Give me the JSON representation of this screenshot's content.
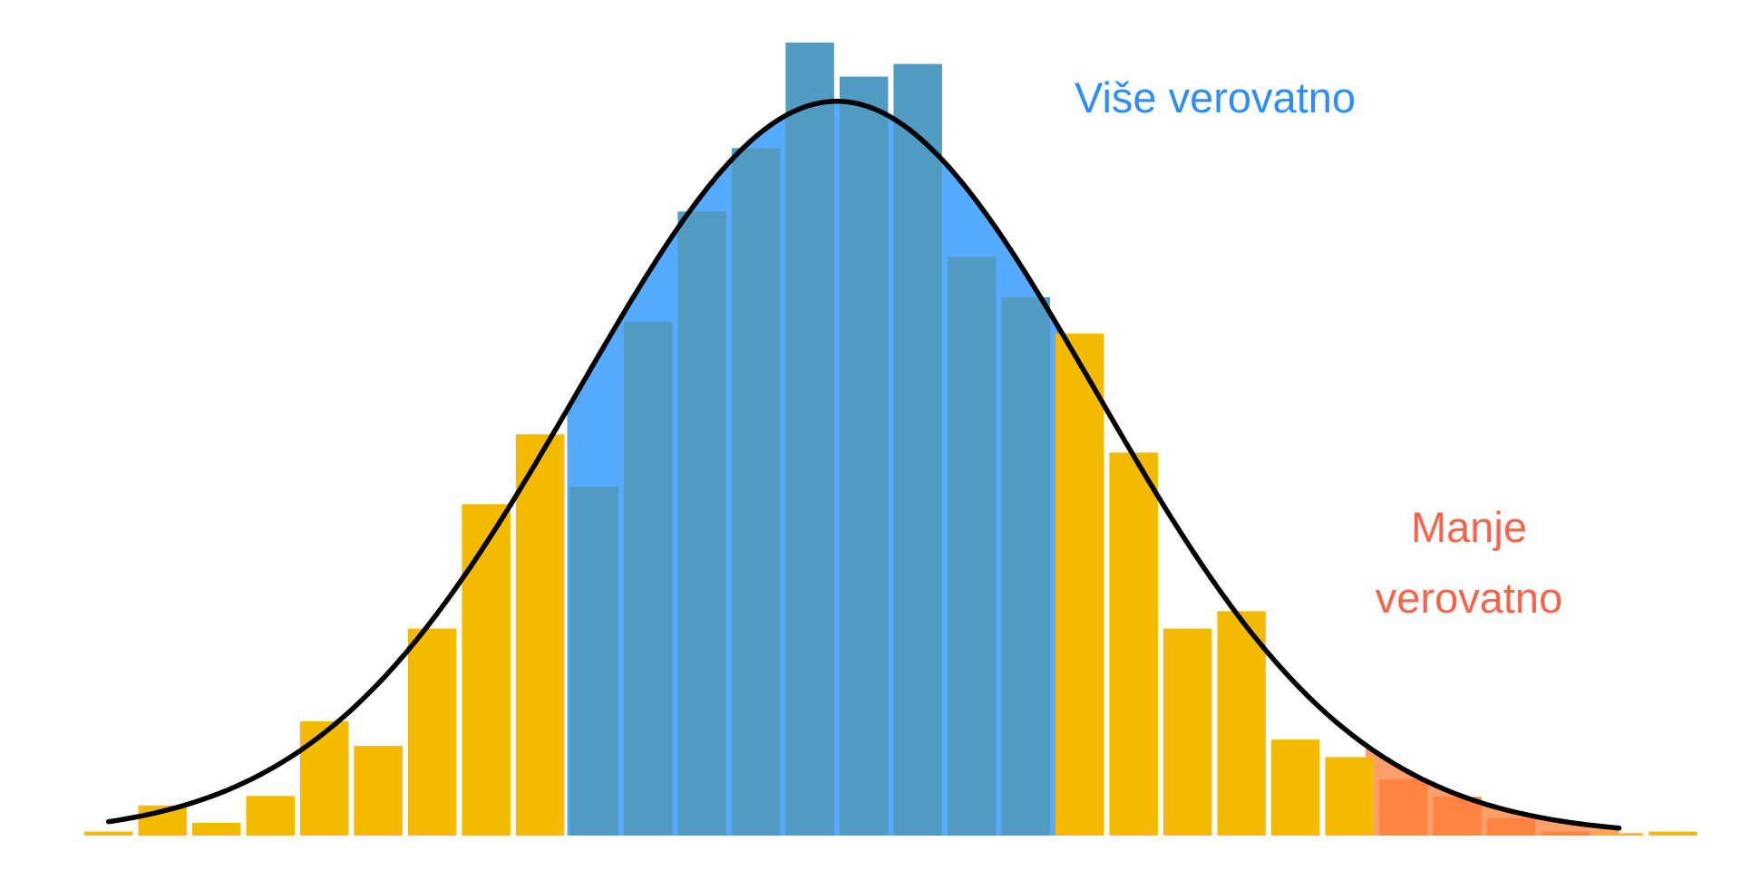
{
  "chart_data": {
    "type": "bar",
    "title": "",
    "xlabel": "",
    "ylabel": "",
    "grid": false,
    "legend": "none",
    "xlim": [
      0,
      29.7
    ],
    "ylim": [
      0,
      100
    ],
    "x": [
      0.5,
      1.5,
      2.5,
      3.5,
      4.5,
      5.5,
      6.5,
      7.5,
      8.5,
      9.5,
      10.5,
      11.5,
      12.5,
      13.5,
      14.5,
      15.5,
      16.5,
      17.5,
      18.5,
      19.5,
      20.5,
      21.5,
      22.5,
      23.5,
      24.5,
      25.5,
      26.5,
      27.5,
      28.5,
      29.5
    ],
    "values": [
      0.5,
      3.8,
      1.6,
      5.0,
      14.4,
      11.3,
      26.1,
      41.8,
      50.6,
      44.0,
      64.8,
      78.7,
      86.7,
      100,
      95.7,
      97.3,
      73.0,
      67.9,
      63.3,
      48.3,
      26.1,
      28.3,
      12.1,
      9.9,
      7.1,
      4.9,
      2.2,
      0.5,
      0.3,
      0.5
    ],
    "curve": {
      "type": "normal",
      "mean": 14.0,
      "sd": 4.79,
      "peak": 92.6,
      "x_range": [
        0.5,
        28.5
      ]
    },
    "regions": [
      {
        "label": "Više verovatno",
        "x_range": [
          9.0,
          18.5
        ],
        "color": "#56AAFF"
      },
      {
        "label": "Manje verovatno",
        "x_range": [
          23.8,
          28.5
        ],
        "color": "#FF7F3B"
      }
    ],
    "annotations": [
      {
        "text": "Više verovatno",
        "color": "#2E8EF7"
      },
      {
        "text_lines": [
          "Manje",
          "verovatno"
        ],
        "color": "#F4654D"
      }
    ],
    "colors": {
      "bar": "#F3BA00",
      "bar_in_blue_region": "#519AC1",
      "bar_in_red_region": "#FF7F3B",
      "bar_gap": "#56AAFF",
      "curve": "#000000"
    }
  }
}
